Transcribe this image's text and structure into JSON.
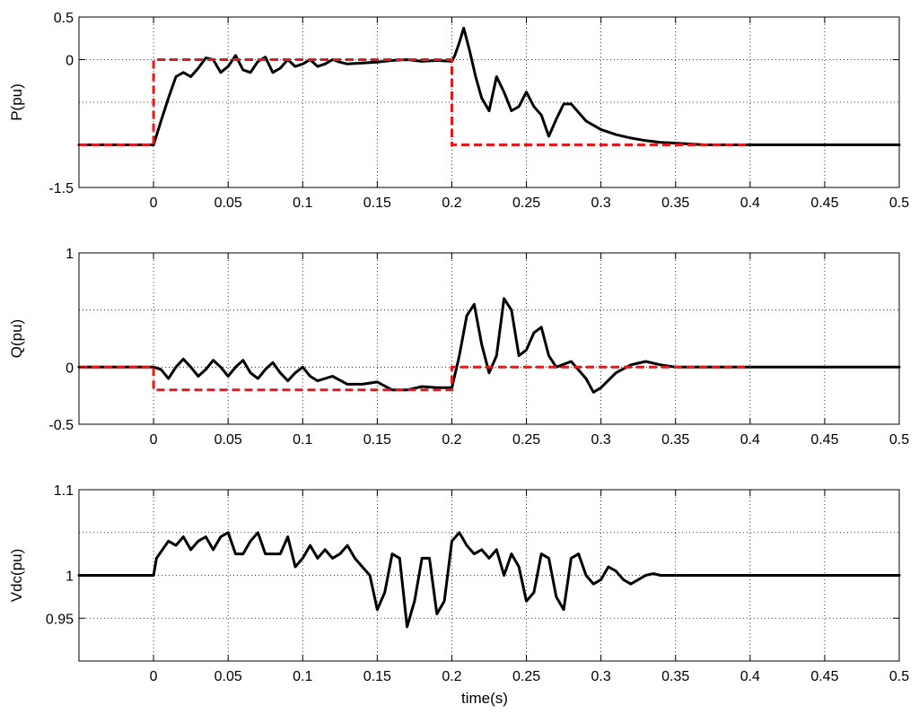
{
  "colors": {
    "measured": "#000000",
    "reference": "#e31a1c",
    "background": "#ffffff"
  },
  "chart_data": [
    {
      "type": "line",
      "ylabel": "P(pu)",
      "xlabel": "",
      "xlim": [
        -0.05,
        0.5
      ],
      "ylim": [
        -1.5,
        0.5
      ],
      "yticks": [
        -1.5,
        0,
        0.5
      ],
      "ygrid": [
        -0.5
      ],
      "xticks": [
        0,
        0.05,
        0.1,
        0.15,
        0.2,
        0.25,
        0.3,
        0.35,
        0.4,
        0.45,
        0.5
      ],
      "xtick_labels": [
        "0",
        "0.05",
        "0.1",
        "0.15",
        "0.2",
        "0.25",
        "0.3",
        "0.35",
        "0.4",
        "0.45",
        "0.5"
      ],
      "ytick_labels": [
        "-1.5",
        "0",
        "0.5"
      ],
      "grid": true,
      "series": [
        {
          "style": "solid-black",
          "x": [
            -0.05,
            0,
            0.005,
            0.01,
            0.015,
            0.02,
            0.025,
            0.03,
            0.035,
            0.04,
            0.045,
            0.05,
            0.055,
            0.06,
            0.065,
            0.07,
            0.075,
            0.08,
            0.085,
            0.09,
            0.095,
            0.1,
            0.105,
            0.11,
            0.115,
            0.12,
            0.125,
            0.13,
            0.14,
            0.15,
            0.16,
            0.17,
            0.18,
            0.19,
            0.2,
            0.202,
            0.205,
            0.208,
            0.212,
            0.216,
            0.22,
            0.225,
            0.23,
            0.235,
            0.24,
            0.245,
            0.25,
            0.255,
            0.26,
            0.265,
            0.27,
            0.275,
            0.28,
            0.285,
            0.29,
            0.3,
            0.31,
            0.32,
            0.33,
            0.34,
            0.35,
            0.36,
            0.37,
            0.38,
            0.4,
            0.45,
            0.5
          ],
          "y": [
            -1,
            -1,
            -0.72,
            -0.45,
            -0.2,
            -0.15,
            -0.2,
            -0.1,
            0.02,
            0.0,
            -0.15,
            -0.08,
            0.05,
            -0.12,
            -0.15,
            -0.02,
            0.03,
            -0.15,
            -0.1,
            0.0,
            -0.08,
            -0.05,
            0.0,
            -0.08,
            -0.05,
            0.0,
            -0.03,
            -0.05,
            -0.04,
            -0.03,
            -0.01,
            0.0,
            -0.02,
            -0.01,
            -0.02,
            0.05,
            0.2,
            0.37,
            0.1,
            -0.2,
            -0.45,
            -0.6,
            -0.2,
            -0.38,
            -0.6,
            -0.55,
            -0.38,
            -0.55,
            -0.65,
            -0.9,
            -0.7,
            -0.52,
            -0.52,
            -0.62,
            -0.72,
            -0.82,
            -0.88,
            -0.92,
            -0.95,
            -0.97,
            -0.98,
            -0.99,
            -1.0,
            -1.0,
            -1.0,
            -1.0,
            -1.0
          ]
        },
        {
          "style": "dashed-red",
          "x": [
            -0.05,
            0,
            0,
            0.2,
            0.2,
            0.4
          ],
          "y": [
            -1,
            -1,
            0,
            0,
            -1,
            -1
          ]
        }
      ]
    },
    {
      "type": "line",
      "ylabel": "Q(pu)",
      "xlabel": "",
      "xlim": [
        -0.05,
        0.5
      ],
      "ylim": [
        -0.5,
        1
      ],
      "yticks": [
        -0.5,
        0,
        1
      ],
      "ygrid": [
        0.5
      ],
      "xticks": [
        0,
        0.05,
        0.1,
        0.15,
        0.2,
        0.25,
        0.3,
        0.35,
        0.4,
        0.45,
        0.5
      ],
      "xtick_labels": [
        "0",
        "0.05",
        "0.1",
        "0.15",
        "0.2",
        "0.25",
        "0.3",
        "0.35",
        "0.4",
        "0.45",
        "0.5"
      ],
      "ytick_labels": [
        "-0.5",
        "0",
        "1"
      ],
      "grid": true,
      "series": [
        {
          "style": "solid-black",
          "x": [
            -0.05,
            0,
            0.005,
            0.01,
            0.015,
            0.02,
            0.025,
            0.03,
            0.035,
            0.04,
            0.045,
            0.05,
            0.055,
            0.06,
            0.065,
            0.07,
            0.075,
            0.08,
            0.085,
            0.09,
            0.095,
            0.1,
            0.105,
            0.11,
            0.12,
            0.13,
            0.14,
            0.15,
            0.16,
            0.17,
            0.18,
            0.19,
            0.2,
            0.205,
            0.21,
            0.215,
            0.22,
            0.225,
            0.23,
            0.235,
            0.24,
            0.245,
            0.25,
            0.255,
            0.26,
            0.265,
            0.27,
            0.28,
            0.29,
            0.295,
            0.3,
            0.31,
            0.32,
            0.33,
            0.34,
            0.35,
            0.36,
            0.4,
            0.45,
            0.5
          ],
          "y": [
            0,
            0,
            -0.02,
            -0.1,
            0.0,
            0.07,
            0.0,
            -0.08,
            -0.02,
            0.06,
            0.0,
            -0.08,
            0.0,
            0.06,
            -0.05,
            -0.1,
            -0.02,
            0.04,
            -0.05,
            -0.12,
            -0.05,
            0.0,
            -0.08,
            -0.12,
            -0.08,
            -0.15,
            -0.15,
            -0.13,
            -0.2,
            -0.2,
            -0.17,
            -0.18,
            -0.18,
            0.1,
            0.45,
            0.55,
            0.2,
            -0.05,
            0.1,
            0.6,
            0.5,
            0.1,
            0.15,
            0.3,
            0.35,
            0.1,
            0.0,
            0.05,
            -0.1,
            -0.22,
            -0.18,
            -0.05,
            0.02,
            0.05,
            0.02,
            0.0,
            0.0,
            0.0,
            0.0,
            0.0
          ]
        },
        {
          "style": "dashed-red",
          "x": [
            -0.05,
            0,
            0,
            0.2,
            0.2,
            0.4
          ],
          "y": [
            0,
            0,
            -0.2,
            -0.2,
            0,
            0
          ]
        }
      ]
    },
    {
      "type": "line",
      "ylabel": "Vdc(pu)",
      "xlabel": "time(s)",
      "xlim": [
        -0.05,
        0.5
      ],
      "ylim": [
        0.9,
        1.1
      ],
      "yticks": [
        0.95,
        1,
        1.1
      ],
      "ygrid": [
        1.05
      ],
      "xticks": [
        0,
        0.05,
        0.1,
        0.15,
        0.2,
        0.25,
        0.3,
        0.35,
        0.4,
        0.45,
        0.5
      ],
      "xtick_labels": [
        "0",
        "0.05",
        "0.1",
        "0.15",
        "0.2",
        "0.25",
        "0.3",
        "0.35",
        "0.4",
        "0.45",
        "0.5"
      ],
      "ytick_labels": [
        "0.95",
        "1",
        "1.1"
      ],
      "grid": true,
      "series": [
        {
          "style": "solid-black",
          "x": [
            -0.05,
            0,
            0.002,
            0.01,
            0.015,
            0.02,
            0.025,
            0.03,
            0.035,
            0.04,
            0.045,
            0.05,
            0.055,
            0.06,
            0.065,
            0.07,
            0.075,
            0.08,
            0.085,
            0.09,
            0.095,
            0.1,
            0.105,
            0.11,
            0.115,
            0.12,
            0.125,
            0.13,
            0.135,
            0.14,
            0.145,
            0.15,
            0.155,
            0.16,
            0.165,
            0.17,
            0.175,
            0.18,
            0.185,
            0.19,
            0.195,
            0.2,
            0.205,
            0.21,
            0.215,
            0.22,
            0.225,
            0.23,
            0.235,
            0.24,
            0.245,
            0.25,
            0.255,
            0.26,
            0.265,
            0.27,
            0.275,
            0.28,
            0.285,
            0.29,
            0.295,
            0.3,
            0.305,
            0.31,
            0.315,
            0.32,
            0.325,
            0.33,
            0.335,
            0.34,
            0.35,
            0.36,
            0.4,
            0.45,
            0.5
          ],
          "y": [
            1.0,
            1.0,
            1.02,
            1.04,
            1.035,
            1.045,
            1.03,
            1.04,
            1.045,
            1.03,
            1.045,
            1.05,
            1.025,
            1.025,
            1.04,
            1.05,
            1.025,
            1.025,
            1.025,
            1.045,
            1.01,
            1.02,
            1.035,
            1.02,
            1.03,
            1.02,
            1.025,
            1.035,
            1.02,
            1.01,
            1.0,
            0.96,
            0.98,
            1.025,
            1.02,
            0.94,
            0.97,
            1.02,
            1.02,
            0.955,
            0.97,
            1.04,
            1.05,
            1.035,
            1.025,
            1.03,
            1.02,
            1.03,
            1.0,
            1.025,
            1.01,
            0.97,
            0.98,
            1.025,
            1.02,
            0.975,
            0.96,
            1.02,
            1.025,
            1.0,
            0.99,
            0.995,
            1.01,
            1.005,
            0.995,
            0.99,
            0.995,
            1.0,
            1.002,
            1.0,
            1.0,
            1.0,
            1.0,
            1.0,
            1.0
          ]
        }
      ]
    }
  ]
}
